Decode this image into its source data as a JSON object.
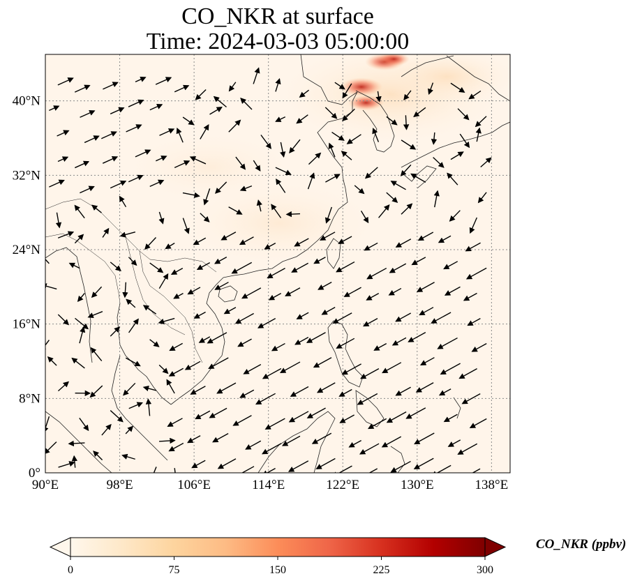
{
  "title_line1": "CO_NKR at surface",
  "title_line2": "Time: 2024-03-03 05:00:00",
  "map": {
    "lon_range": [
      90,
      140
    ],
    "lat_range": [
      0,
      45
    ],
    "lon_ticks": [
      {
        "value": 90,
        "label": "90°E"
      },
      {
        "value": 98,
        "label": "98°E"
      },
      {
        "value": 106,
        "label": "106°E"
      },
      {
        "value": 114,
        "label": "114°E"
      },
      {
        "value": 122,
        "label": "122°E"
      },
      {
        "value": 130,
        "label": "130°E"
      },
      {
        "value": 138,
        "label": "138°E"
      }
    ],
    "lat_ticks": [
      {
        "value": 0,
        "label": "0°"
      },
      {
        "value": 8,
        "label": "8°N"
      },
      {
        "value": 16,
        "label": "16°N"
      },
      {
        "value": 24,
        "label": "24°N"
      },
      {
        "value": 32,
        "label": "32°N"
      },
      {
        "value": 40,
        "label": "40°N"
      }
    ],
    "gridlines": "dotted",
    "wind_vectors": true
  },
  "colorbar": {
    "label": "CO_NKR (ppbv)",
    "colormap": "OrRd",
    "min": 0,
    "max": 300,
    "ticks": [
      "0",
      "75",
      "150",
      "225",
      "300"
    ],
    "extend": "both",
    "colors": [
      "#fff7ec",
      "#fee8c8",
      "#fdd49e",
      "#fdbb84",
      "#fc8d59",
      "#ef6548",
      "#d7301f",
      "#b30000",
      "#7f0000"
    ]
  },
  "hotspots": [
    {
      "lon": 126.5,
      "lat": 44.2,
      "value": 230
    },
    {
      "lon": 124.0,
      "lat": 41.5,
      "value": 260
    },
    {
      "lon": 124.5,
      "lat": 39.8,
      "value": 200
    },
    {
      "lon": 127.5,
      "lat": 44.5,
      "value": 160
    }
  ]
}
